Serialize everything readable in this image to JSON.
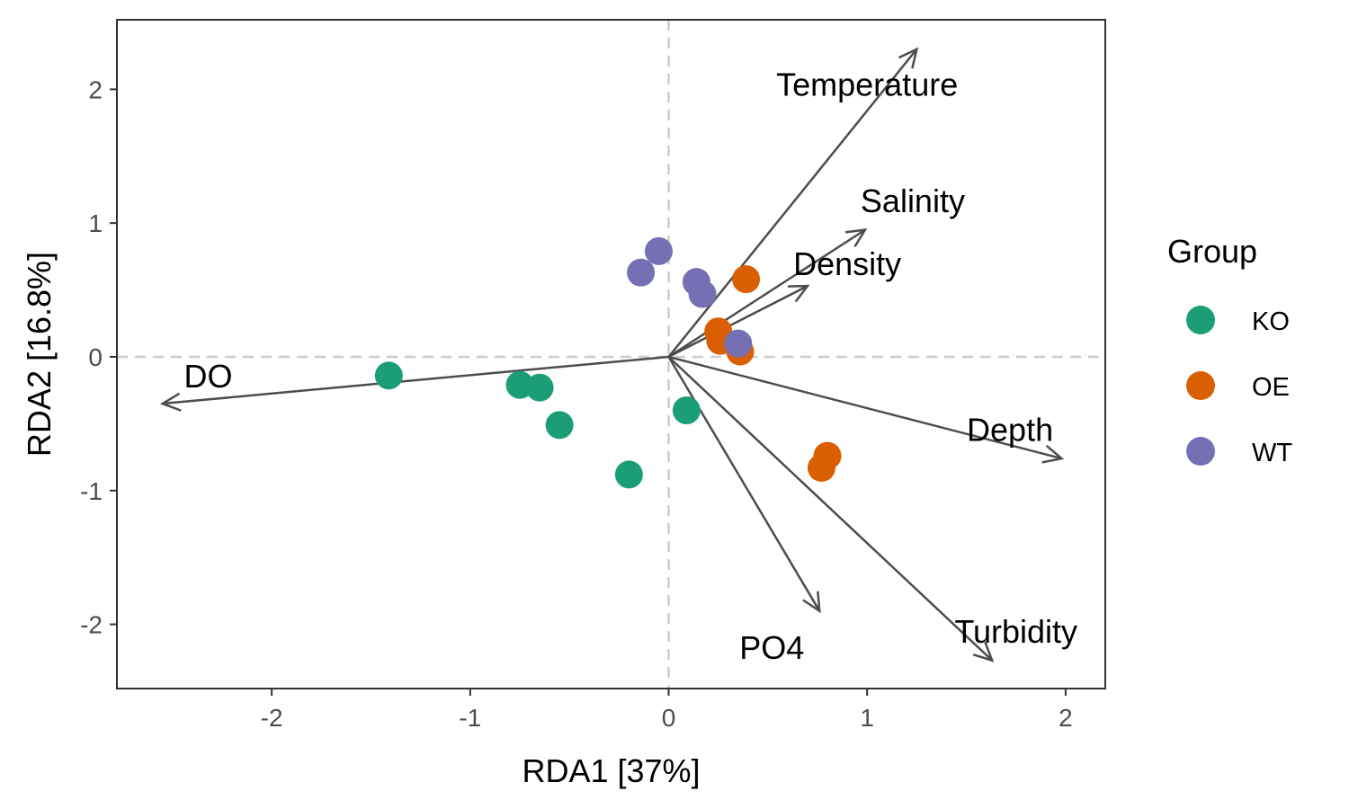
{
  "chart_data": {
    "type": "scatter",
    "title": "",
    "xlabel": "RDA1 [37%]",
    "ylabel": "RDA2 [16.8%]",
    "xlim": [
      -2.78,
      2.2
    ],
    "ylim": [
      -2.48,
      2.52
    ],
    "x_ticks": [
      -2,
      -1,
      0,
      1,
      2
    ],
    "y_ticks": [
      -2,
      -1,
      0,
      1,
      2
    ],
    "grid": false,
    "reference_lines": {
      "x": 0,
      "y": 0,
      "color": "#cccccc",
      "style": "dashed"
    },
    "legend": {
      "title": "Group",
      "placement": "right",
      "entries": [
        {
          "name": "KO",
          "color": "#1b9e77"
        },
        {
          "name": "OE",
          "color": "#d95f02"
        },
        {
          "name": "WT",
          "color": "#7570b3"
        }
      ]
    },
    "series": [
      {
        "name": "KO",
        "color": "#1b9e77",
        "points": [
          {
            "x": -1.41,
            "y": -0.14
          },
          {
            "x": -0.75,
            "y": -0.21
          },
          {
            "x": -0.65,
            "y": -0.23
          },
          {
            "x": -0.55,
            "y": -0.51
          },
          {
            "x": -0.2,
            "y": -0.88
          },
          {
            "x": 0.09,
            "y": -0.4
          }
        ]
      },
      {
        "name": "OE",
        "color": "#d95f02",
        "points": [
          {
            "x": 0.39,
            "y": 0.58
          },
          {
            "x": 0.25,
            "y": 0.19
          },
          {
            "x": 0.26,
            "y": 0.12
          },
          {
            "x": 0.36,
            "y": 0.04
          },
          {
            "x": 0.8,
            "y": -0.74
          },
          {
            "x": 0.77,
            "y": -0.83
          }
        ]
      },
      {
        "name": "WT",
        "color": "#7570b3",
        "points": [
          {
            "x": -0.05,
            "y": 0.79
          },
          {
            "x": -0.14,
            "y": 0.63
          },
          {
            "x": 0.14,
            "y": 0.56
          },
          {
            "x": 0.17,
            "y": 0.47
          },
          {
            "x": 0.35,
            "y": 0.1
          }
        ]
      }
    ],
    "arrows": {
      "color": "#4d4d4d",
      "vectors": [
        {
          "label": "Temperature",
          "x": 1.25,
          "y": 2.3,
          "label_x": 1.0,
          "label_y": 2.04
        },
        {
          "label": "Salinity",
          "x": 0.99,
          "y": 0.95,
          "label_x": 1.23,
          "label_y": 1.17
        },
        {
          "label": "Density",
          "x": 0.7,
          "y": 0.53,
          "label_x": 0.9,
          "label_y": 0.7
        },
        {
          "label": "Depth",
          "x": 1.98,
          "y": -0.76,
          "label_x": 1.72,
          "label_y": -0.54
        },
        {
          "label": "Turbidity",
          "x": 1.63,
          "y": -2.27,
          "label_x": 1.75,
          "label_y": -2.05
        },
        {
          "label": "PO4",
          "x": 0.76,
          "y": -1.9,
          "label_x": 0.52,
          "label_y": -2.17
        },
        {
          "label": "DO",
          "x": -2.55,
          "y": -0.35,
          "label_x": -2.32,
          "label_y": -0.14
        }
      ]
    }
  }
}
